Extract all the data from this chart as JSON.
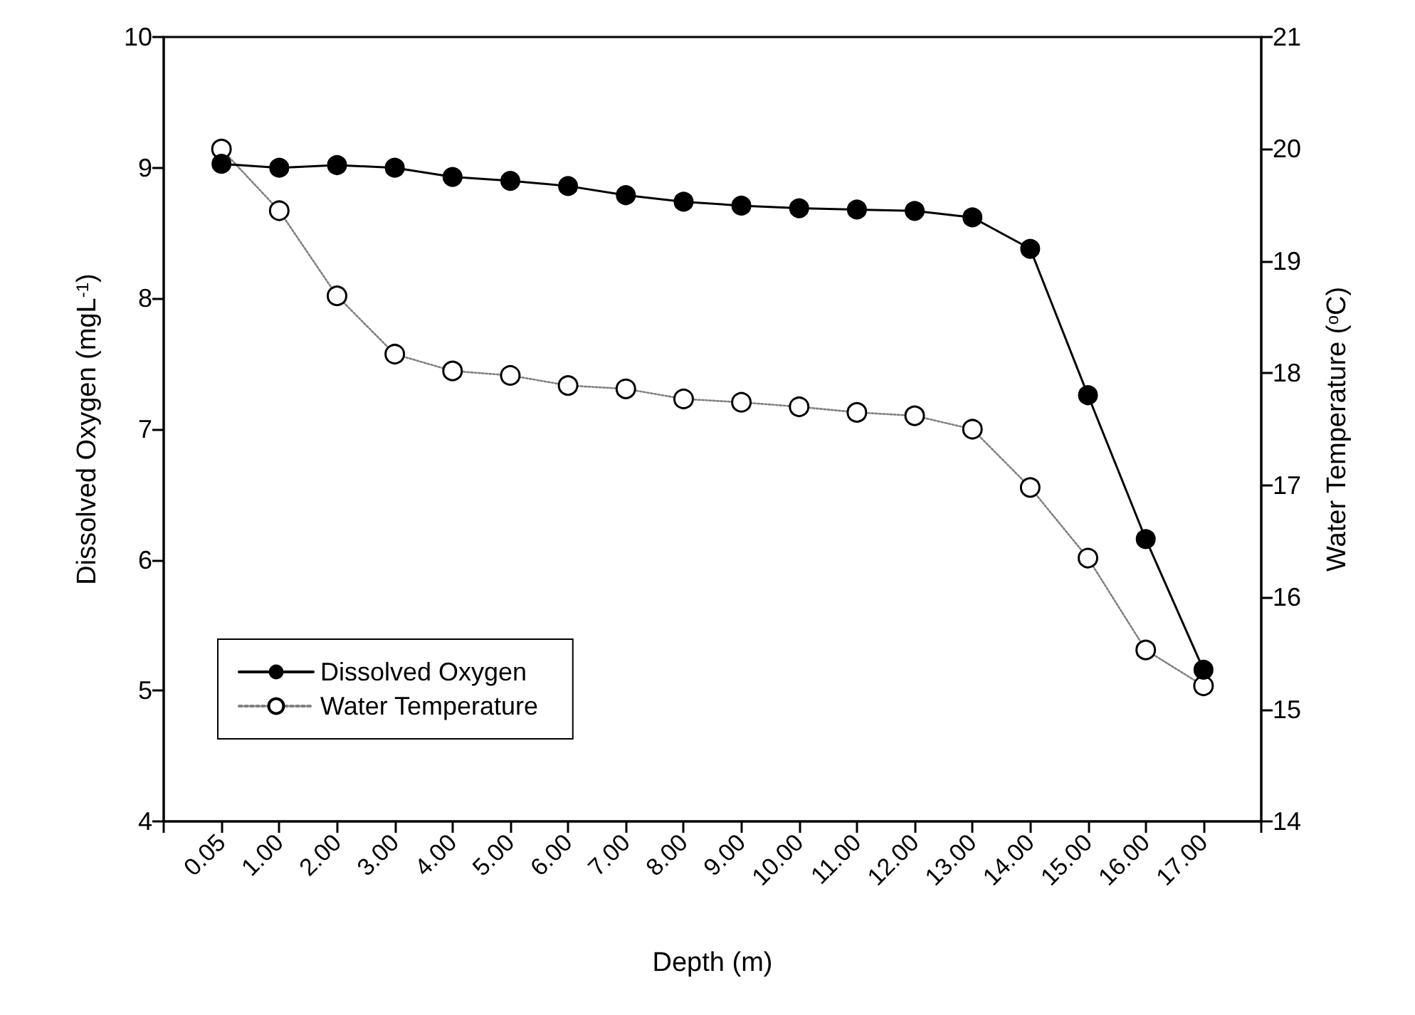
{
  "chart_data": {
    "type": "line",
    "xlabel": "Depth (m)",
    "ylabel": "Dissolved Oxygen (mgL$^{-1}$)",
    "y2label": "Water Temperature ($^{o}$C)",
    "categories": [
      "0.05",
      "1.00",
      "2.00",
      "3.00",
      "4.00",
      "5.00",
      "6.00",
      "7.00",
      "8.00",
      "9.00",
      "10.00",
      "11.00",
      "12.00",
      "13.00",
      "14.00",
      "15.00",
      "16.00",
      "17.00"
    ],
    "series": [
      {
        "name": "Dissolved Oxygen",
        "color": "#000000",
        "marker": "circle",
        "line_style": "solid",
        "values": [
          9.03,
          9.0,
          9.02,
          9.0,
          8.93,
          8.9,
          8.86,
          8.79,
          8.74,
          8.71,
          8.69,
          8.68,
          8.67,
          8.62,
          8.38,
          7.26,
          6.16,
          5.16
        ]
      },
      {
        "name": "Water Temperature",
        "color": "#808080",
        "marker": "circle",
        "line_style": "dotted",
        "axis": "y2",
        "values": [
          20.0,
          19.45,
          18.69,
          18.17,
          18.02,
          17.98,
          17.89,
          17.86,
          17.77,
          17.74,
          17.7,
          17.65,
          17.62,
          17.5,
          16.98,
          16.35,
          15.53,
          15.21
        ]
      }
    ],
    "ylim": [
      4,
      10
    ],
    "yticks": [
      4,
      5,
      6,
      7,
      8,
      9,
      10
    ],
    "y2lim": [
      14,
      21
    ],
    "y2ticks": [
      14,
      15,
      16,
      17,
      18,
      19,
      20,
      21
    ],
    "legend": "bottom left",
    "grid": false
  }
}
